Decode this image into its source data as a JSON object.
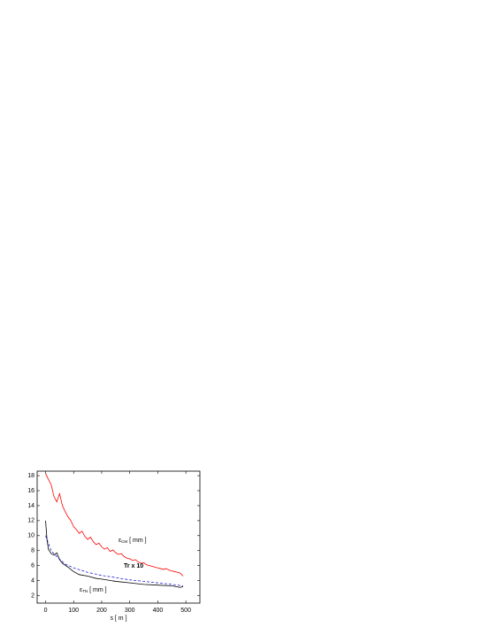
{
  "chart_data": {
    "type": "line",
    "xlabel": "s  [ m ]",
    "xlim": [
      -30,
      550
    ],
    "xticks": [
      0,
      100,
      200,
      300,
      400,
      500
    ],
    "ylim": [
      1,
      18.6
    ],
    "yticks": [
      2,
      4,
      6,
      8,
      10,
      12,
      14,
      16,
      18
    ],
    "series": [
      {
        "color": "#ff0000",
        "dash": false,
        "x": [
          0,
          10,
          20,
          30,
          40,
          50,
          60,
          70,
          80,
          90,
          100,
          110,
          120,
          130,
          140,
          150,
          160,
          170,
          180,
          190,
          200,
          210,
          220,
          230,
          240,
          250,
          260,
          270,
          280,
          290,
          300,
          310,
          320,
          330,
          340,
          350,
          360,
          370,
          380,
          390,
          400,
          410,
          420,
          430,
          440,
          450,
          460,
          470,
          480,
          490
        ],
        "values": [
          18.3,
          17.5,
          16.8,
          15.2,
          14.5,
          15.6,
          14.0,
          13.2,
          12.5,
          12.0,
          11.2,
          10.8,
          10.3,
          10.6,
          9.9,
          9.5,
          9.8,
          9.2,
          8.8,
          9.0,
          8.5,
          8.2,
          8.4,
          7.9,
          8.1,
          7.7,
          7.5,
          7.6,
          7.2,
          7.0,
          6.9,
          6.7,
          6.8,
          6.5,
          6.3,
          6.4,
          6.1,
          6.0,
          5.9,
          5.8,
          5.7,
          5.6,
          5.5,
          5.6,
          5.4,
          5.3,
          5.2,
          5.1,
          5.0,
          4.6
        ]
      },
      {
        "color": "#000000",
        "dash": false,
        "x": [
          0,
          5,
          10,
          20,
          30,
          40,
          50,
          60,
          80,
          100,
          120,
          150,
          180,
          200,
          250,
          300,
          350,
          400,
          450,
          480,
          490
        ],
        "values": [
          12,
          9.5,
          8.2,
          7.6,
          7.4,
          7.7,
          6.8,
          6.3,
          5.8,
          5.2,
          4.8,
          4.6,
          4.3,
          4.2,
          3.9,
          3.7,
          3.5,
          3.4,
          3.3,
          3.1,
          3.2
        ]
      },
      {
        "color": "#0000cc",
        "dash": true,
        "x": [
          0,
          10,
          20,
          40,
          70,
          100,
          150,
          200,
          250,
          300,
          350,
          400,
          450,
          490
        ],
        "values": [
          10,
          9,
          8,
          7.2,
          6.2,
          5.7,
          5.1,
          4.7,
          4.4,
          4.1,
          3.9,
          3.7,
          3.5,
          3.3
        ]
      }
    ],
    "annotations": [
      {
        "symbol": "ε",
        "sub": "CM",
        "unit": "[ mm ]",
        "color": "#000000"
      },
      {
        "symbol": "Tr x 10",
        "color": "#0000cc"
      },
      {
        "symbol": "ε",
        "sub": "TN",
        "unit": "[ mm ]",
        "color": "#000000"
      }
    ]
  }
}
